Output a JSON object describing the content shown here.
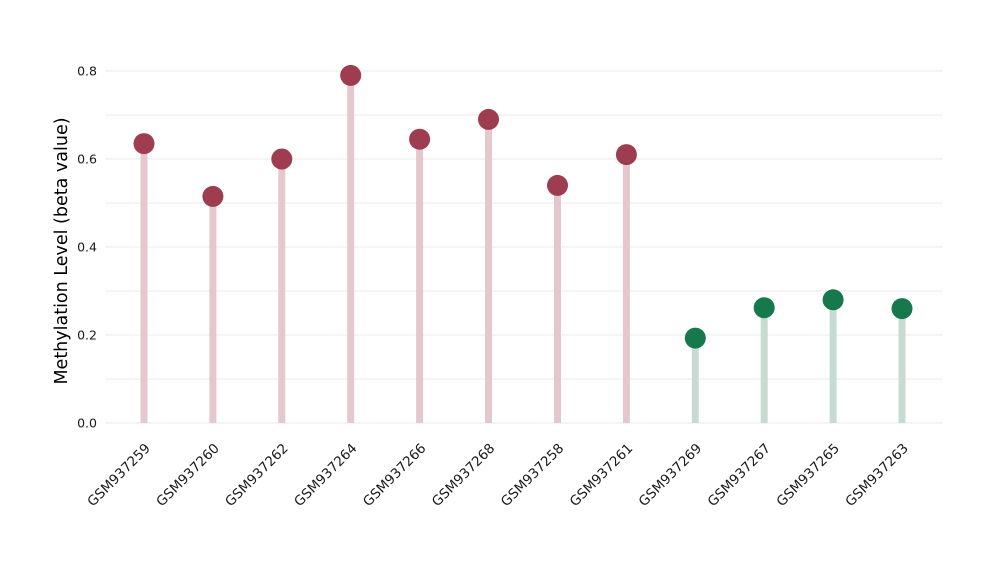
{
  "chart_data": {
    "type": "lollipop",
    "title": "",
    "xlabel": "",
    "ylabel": "Methylation Level (beta value)",
    "ylim": [
      0,
      0.82
    ],
    "yticks": [
      0.0,
      0.2,
      0.4,
      0.6,
      0.8
    ],
    "grid_interval": 0.1,
    "grid_on": true,
    "legend": null,
    "categories": [
      "GSM937259",
      "GSM937260",
      "GSM937262",
      "GSM937264",
      "GSM937266",
      "GSM937268",
      "GSM937258",
      "GSM937261",
      "GSM937269",
      "GSM937267",
      "GSM937265",
      "GSM937263"
    ],
    "points": [
      {
        "label": "GSM937259",
        "value": 0.635,
        "group": "high"
      },
      {
        "label": "GSM937260",
        "value": 0.515,
        "group": "high"
      },
      {
        "label": "GSM937262",
        "value": 0.6,
        "group": "high"
      },
      {
        "label": "GSM937264",
        "value": 0.79,
        "group": "high"
      },
      {
        "label": "GSM937266",
        "value": 0.645,
        "group": "high"
      },
      {
        "label": "GSM937268",
        "value": 0.69,
        "group": "high"
      },
      {
        "label": "GSM937258",
        "value": 0.54,
        "group": "high"
      },
      {
        "label": "GSM937261",
        "value": 0.61,
        "group": "high"
      },
      {
        "label": "GSM937269",
        "value": 0.193,
        "group": "low"
      },
      {
        "label": "GSM937267",
        "value": 0.262,
        "group": "low"
      },
      {
        "label": "GSM937265",
        "value": 0.28,
        "group": "low"
      },
      {
        "label": "GSM937263",
        "value": 0.26,
        "group": "low"
      }
    ],
    "colors": {
      "high_dot": "#9e3c50",
      "high_stem": "#e4c8ce",
      "low_dot": "#15794c",
      "low_stem": "#c8dbd2",
      "gridline": "#ededed",
      "tick_text": "#1a1a1a",
      "axis_label_text": "#000000"
    }
  }
}
